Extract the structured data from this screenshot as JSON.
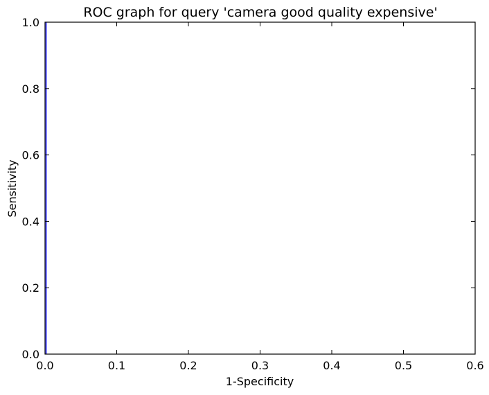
{
  "chart_data": {
    "type": "line",
    "title": "ROC graph for query 'camera good quality expensive'",
    "xlabel": "1-Specificity",
    "ylabel": "Sensitivity",
    "xlim": [
      0.0,
      0.6
    ],
    "ylim": [
      0.0,
      1.0
    ],
    "xticks": [
      "0.0",
      "0.1",
      "0.2",
      "0.3",
      "0.4",
      "0.5",
      "0.6"
    ],
    "yticks": [
      "0.0",
      "0.2",
      "0.4",
      "0.6",
      "0.8",
      "1.0"
    ],
    "grid": false,
    "series": [
      {
        "color": "#0000ff",
        "x": [
          0.0,
          0.0,
          0.0
        ],
        "y": [
          0.0,
          1.0,
          1.0
        ]
      }
    ]
  }
}
